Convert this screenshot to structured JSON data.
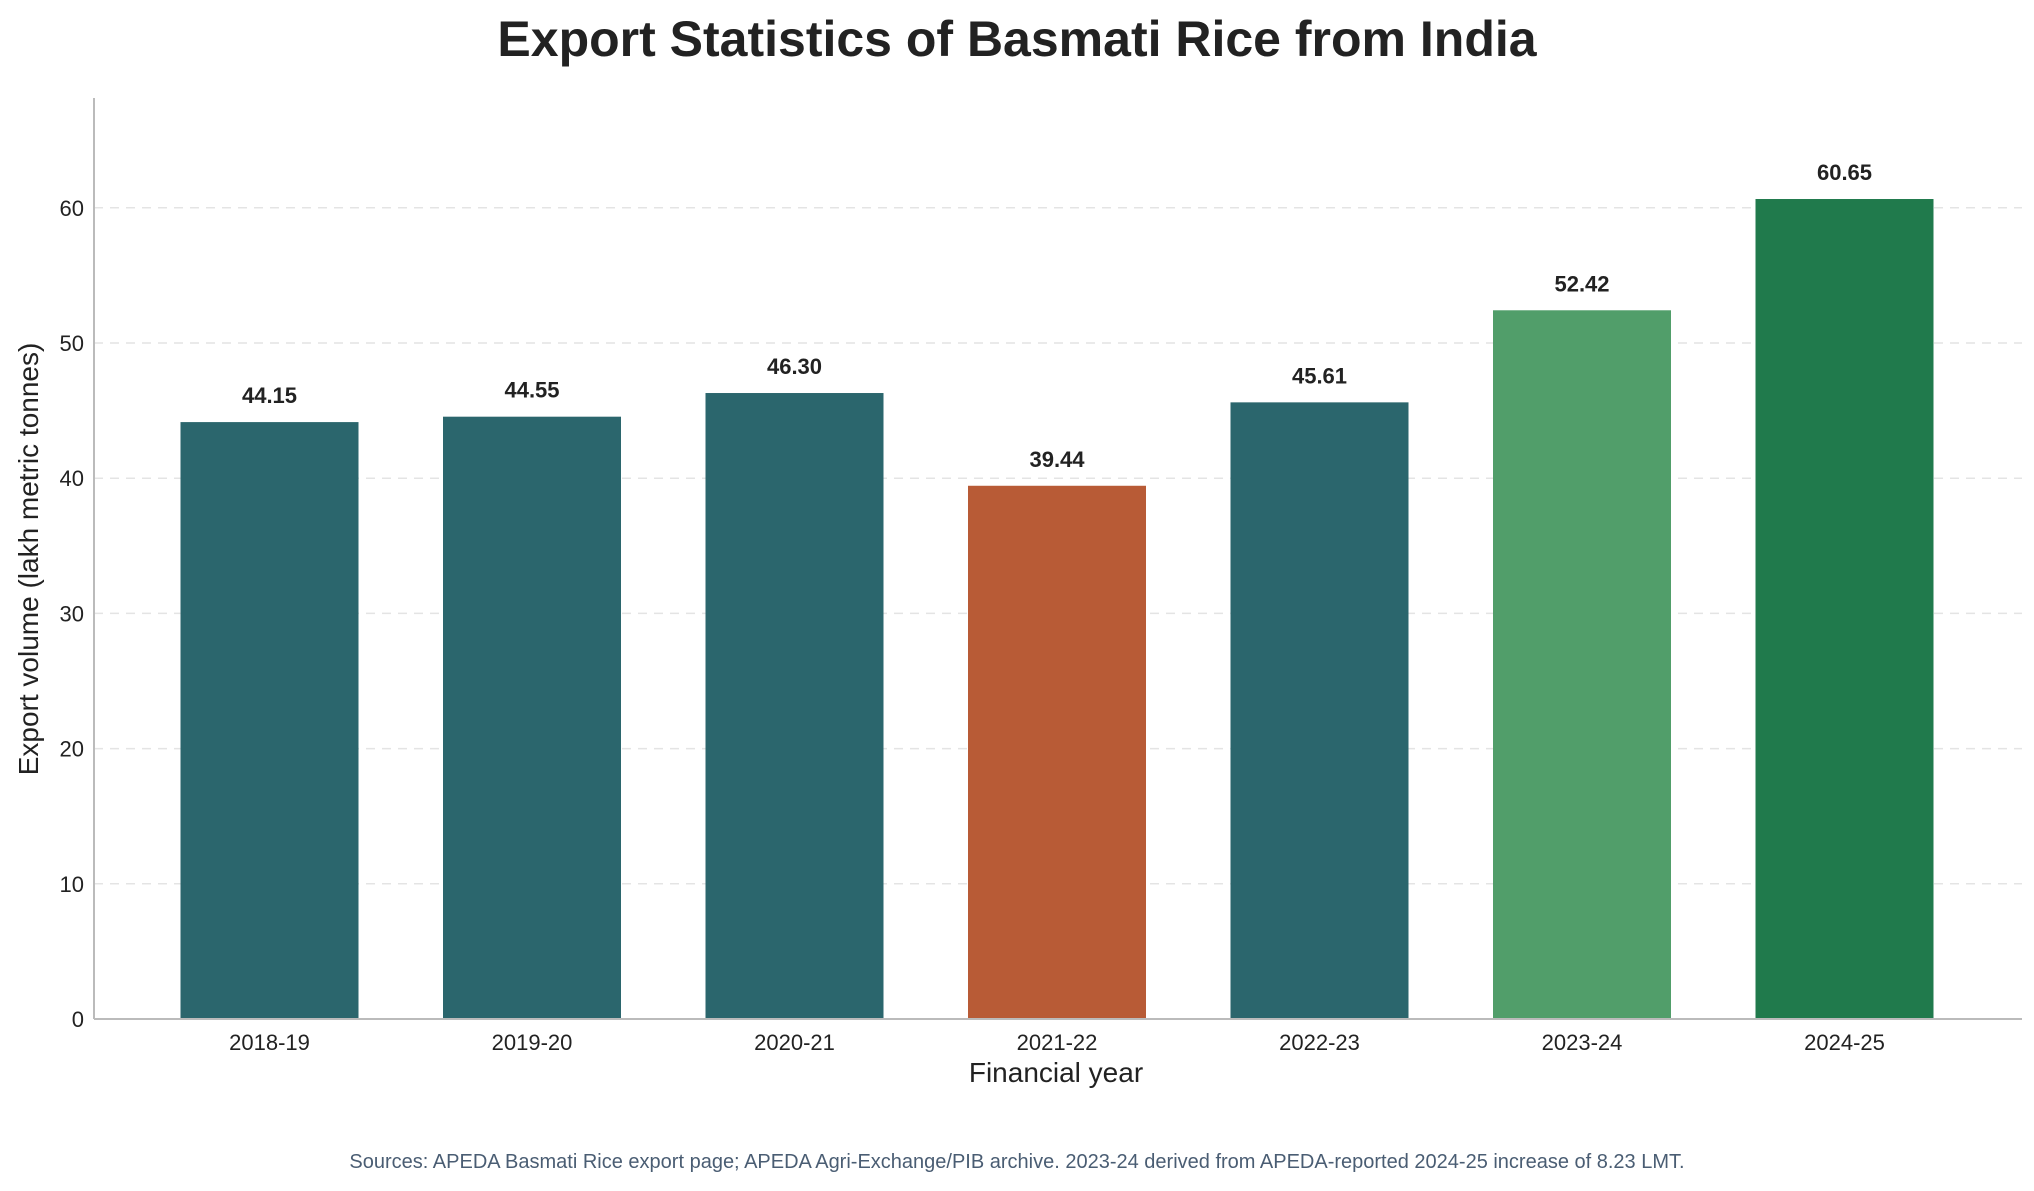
{
  "chart_data": {
    "type": "bar",
    "title": "Export Statistics of Basmati Rice from India",
    "xlabel": "Financial year",
    "ylabel": "Export volume (lakh metric tonnes)",
    "categories": [
      "2018-19",
      "2019-20",
      "2020-21",
      "2021-22",
      "2022-23",
      "2023-24",
      "2024-25"
    ],
    "values": [
      44.15,
      44.55,
      46.3,
      39.44,
      45.61,
      52.42,
      60.65
    ],
    "value_labels": [
      "44.15",
      "44.55",
      "46.30",
      "39.44",
      "45.61",
      "52.42",
      "60.65"
    ],
    "bar_colors": [
      "#2b666d",
      "#2b666d",
      "#2b666d",
      "#b85b36",
      "#2b666d",
      "#519e6a",
      "#207a4c"
    ],
    "ylim": [
      0,
      68
    ],
    "yticks": [
      0,
      10,
      20,
      30,
      40,
      50,
      60
    ],
    "grid": "horizontal dashed",
    "legend": "none"
  },
  "source_note": "Sources: APEDA Basmati Rice export page; APEDA Agri-Exchange/PIB archive. 2023-24 derived from APEDA-reported 2024-25 increase of 8.23 LMT."
}
